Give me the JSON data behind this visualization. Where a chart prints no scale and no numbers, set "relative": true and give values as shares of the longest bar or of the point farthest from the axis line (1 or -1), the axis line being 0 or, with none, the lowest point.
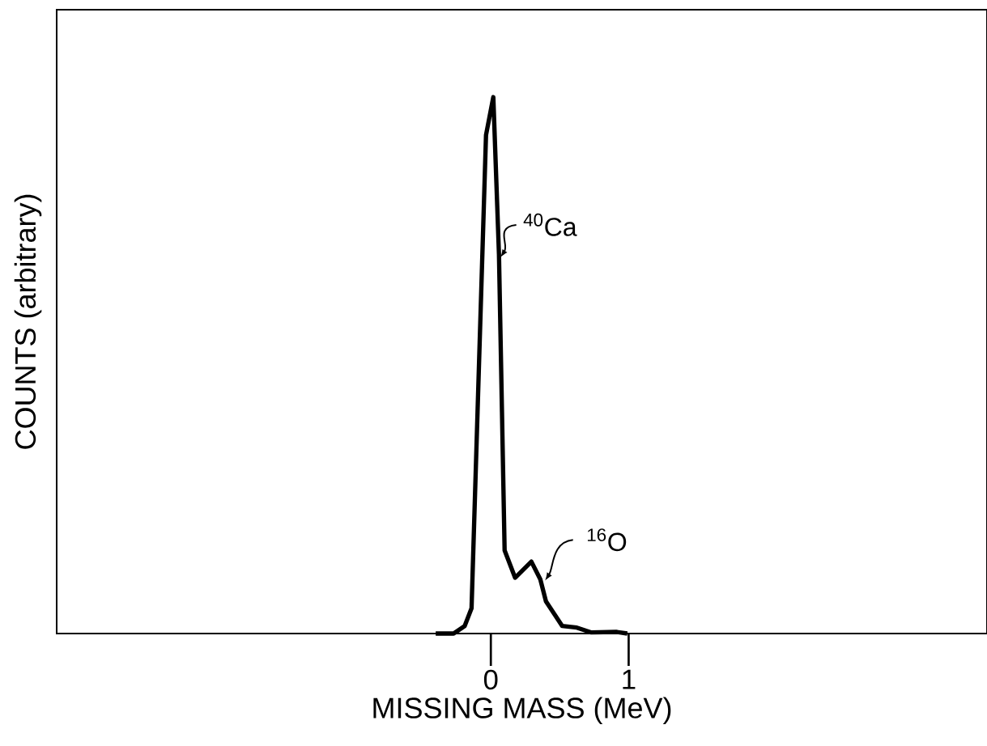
{
  "chart_data": {
    "type": "line",
    "relative": true,
    "xlabel": "MISSING MASS (MeV)",
    "ylabel": "COUNTS (arbitrary)",
    "xlim": [
      -3.15,
      3.6
    ],
    "xticks": [
      0,
      1
    ],
    "color": "#000000",
    "x": [
      -0.4,
      -0.27,
      -0.19,
      -0.14,
      -0.035,
      0.018,
      0.059,
      0.1,
      0.176,
      0.294,
      0.359,
      0.4,
      0.518,
      0.624,
      0.73,
      0.91,
      0.99
    ],
    "values": [
      0,
      0,
      0.014,
      0.047,
      0.929,
      1,
      0.707,
      0.155,
      0.104,
      0.134,
      0.101,
      0.06,
      0.014,
      0.011,
      0.002,
      0.003,
      0
    ],
    "annotations": [
      "$^{40}$Ca",
      "$^{16}$O"
    ]
  }
}
